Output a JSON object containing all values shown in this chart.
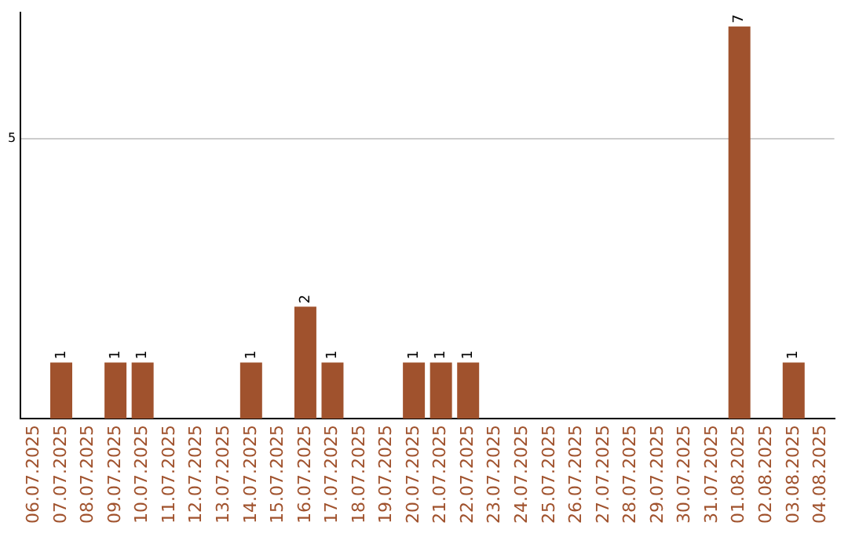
{
  "chart_data": {
    "type": "bar",
    "categories": [
      "06.07.2025",
      "07.07.2025",
      "08.07.2025",
      "09.07.2025",
      "10.07.2025",
      "11.07.2025",
      "12.07.2025",
      "13.07.2025",
      "14.07.2025",
      "15.07.2025",
      "16.07.2025",
      "17.07.2025",
      "18.07.2025",
      "19.07.2025",
      "20.07.2025",
      "21.07.2025",
      "22.07.2025",
      "23.07.2025",
      "24.07.2025",
      "25.07.2025",
      "26.07.2025",
      "27.07.2025",
      "28.07.2025",
      "29.07.2025",
      "30.07.2025",
      "31.07.2025",
      "01.08.2025",
      "02.08.2025",
      "03.08.2025",
      "04.08.2025"
    ],
    "values": [
      0,
      1,
      0,
      1,
      1,
      0,
      0,
      0,
      1,
      0,
      2,
      1,
      0,
      0,
      1,
      1,
      1,
      0,
      0,
      0,
      0,
      0,
      0,
      0,
      0,
      0,
      7,
      0,
      1,
      0
    ],
    "value_labels": [
      null,
      "1",
      null,
      "1",
      "1",
      null,
      null,
      null,
      "1",
      null,
      "2",
      "1",
      null,
      null,
      "1",
      "1",
      "1",
      null,
      null,
      null,
      null,
      null,
      null,
      null,
      null,
      null,
      "7",
      null,
      "1",
      null
    ],
    "color": "#a0522d",
    "ylim": [
      0,
      7.25
    ],
    "yticks": [
      5
    ],
    "grid": "y",
    "legend": false
  }
}
